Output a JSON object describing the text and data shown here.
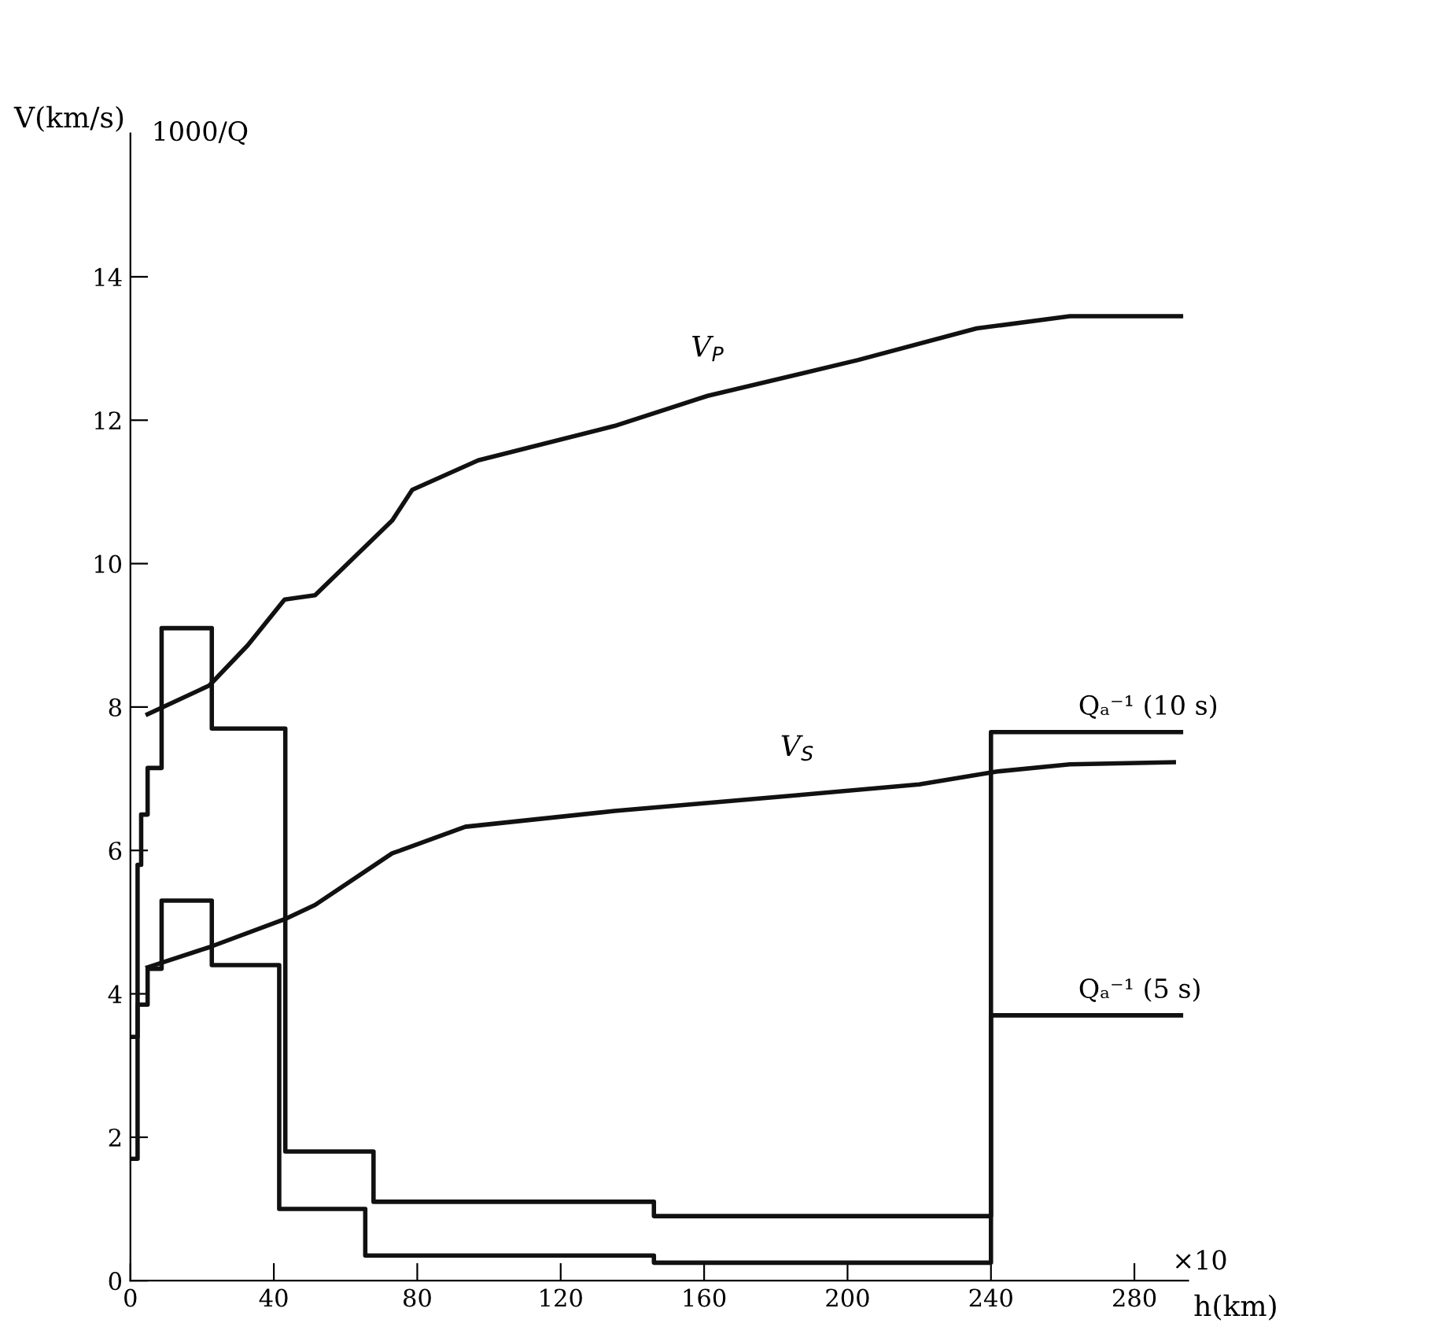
{
  "chart_data": {
    "type": "line",
    "xlabel": "h(km)",
    "ylabel": "V(km/s)",
    "annotations": [
      "1000/Q",
      "×10"
    ],
    "xlim": [
      0,
      295
    ],
    "ylim": [
      0,
      16
    ],
    "xticks": [
      0,
      40,
      80,
      120,
      160,
      200,
      240,
      280
    ],
    "yticks": [
      0,
      2,
      4,
      6,
      8,
      10,
      12,
      14
    ],
    "grid": false,
    "legend": false,
    "marker": "none",
    "line_style": "solid",
    "series": [
      {
        "name": "V$_{P}$",
        "color": "#111111",
        "x": [
          4.8,
          22,
          32.7,
          43,
          51.5,
          73,
          78.6,
          97,
          135,
          161,
          203,
          236,
          262,
          293
        ],
        "values": [
          7.9,
          8.3,
          8.86,
          9.5,
          9.56,
          10.6,
          11.03,
          11.44,
          11.92,
          12.34,
          12.84,
          13.28,
          13.45,
          13.45
        ]
      },
      {
        "name": "V$_{S}$",
        "color": "#111111",
        "x": [
          4.8,
          22,
          43,
          51.5,
          73,
          77,
          93.4,
          135,
          186,
          220,
          241.5,
          262,
          291
        ],
        "values": [
          4.37,
          4.65,
          5.04,
          5.24,
          5.96,
          6.03,
          6.33,
          6.55,
          6.77,
          6.92,
          7.1,
          7.2,
          7.23
        ]
      },
      {
        "name": "Qₐ⁻¹ (10 s)",
        "type": "step",
        "color": "#111111",
        "x": [
          0.5,
          2,
          3,
          4.8,
          8.7,
          22.7,
          43.2,
          67.8,
          146,
          240,
          293
        ],
        "values": [
          1.7,
          5.8,
          6.5,
          7.15,
          9.1,
          7.7,
          1.8,
          1.1,
          0.9,
          7.65,
          7.65
        ]
      },
      {
        "name": "Qₐ⁻¹ (5 s)",
        "type": "step",
        "color": "#111111",
        "x": [
          0.5,
          2,
          4.8,
          8.7,
          22.7,
          41.5,
          65.5,
          146,
          240,
          293
        ],
        "values": [
          3.4,
          3.85,
          4.35,
          5.3,
          4.4,
          1.0,
          0.35,
          0.25,
          3.7,
          3.7
        ]
      }
    ]
  }
}
